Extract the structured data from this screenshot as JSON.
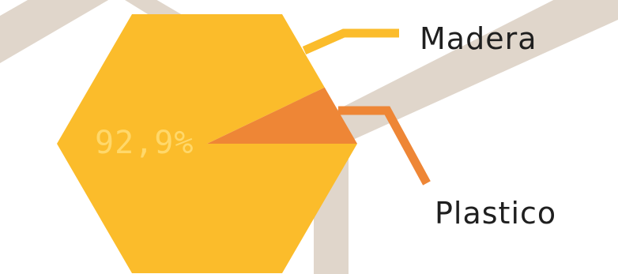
{
  "chart_data": {
    "type": "pie",
    "title": "",
    "slices": [
      {
        "label": "Madera",
        "value": 92.9,
        "color": "#FBBC2B"
      },
      {
        "label": "Plastico",
        "value": 7.1,
        "color": "#EE8636"
      }
    ],
    "value_label": "92,9%",
    "value_label_color": "#FFD86A",
    "background_band_color": "#E0D6CB",
    "shape": "hexagon"
  }
}
